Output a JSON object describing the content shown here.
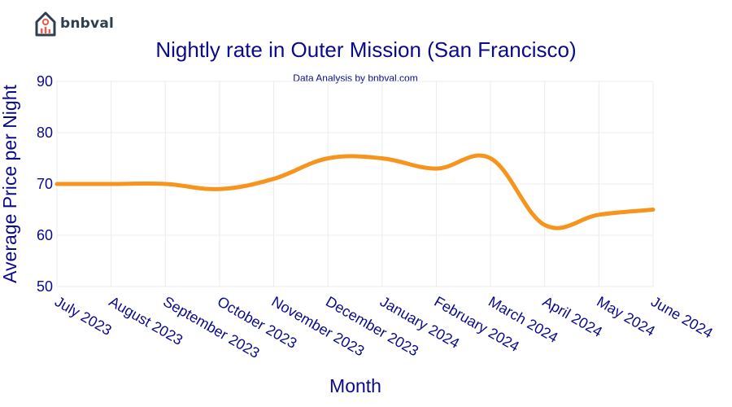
{
  "brand": {
    "name": "bnbval",
    "logo_icon": "house-chart-icon"
  },
  "chart_data": {
    "type": "line",
    "title": "Nightly rate in Outer Mission (San Francisco)",
    "subtitle": "Data Analysis by bnbval.com",
    "xlabel": "Month",
    "ylabel": "Average Price per Night",
    "categories": [
      "July 2023",
      "August 2023",
      "September 2023",
      "October 2023",
      "November 2023",
      "December 2023",
      "January 2024",
      "February 2024",
      "March 2024",
      "April 2024",
      "May 2024",
      "June 2024"
    ],
    "series": [
      {
        "values": [
          70,
          70,
          70,
          69,
          71,
          75,
          75,
          73,
          75,
          62,
          64,
          65
        ],
        "color": "#f7941d"
      }
    ],
    "ylim": [
      50,
      90
    ],
    "yticks": [
      50,
      60,
      70,
      80,
      90
    ],
    "grid": true
  }
}
